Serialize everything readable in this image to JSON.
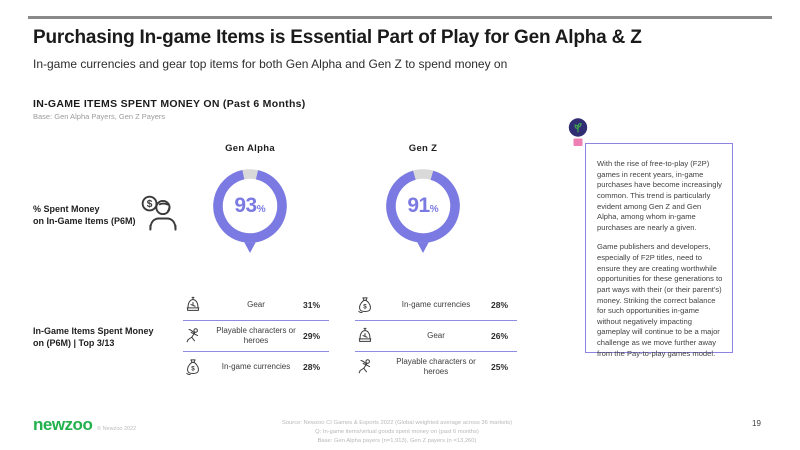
{
  "slide": {
    "title": "Purchasing In-game Items is Essential Part of Play for Gen Alpha & Z",
    "subtitle": "In-game currencies and gear top items for both Gen Alpha and Gen Z to spend money on",
    "page_number": "19"
  },
  "section": {
    "heading": "IN-GAME ITEMS SPENT MONEY ON (Past 6 Months)",
    "base_note": "Base: Gen Alpha Payers, Gen Z Payers"
  },
  "row_labels": {
    "spent_money_line1": "% Spent Money",
    "spent_money_line2": "on In-Game Items (P6M)",
    "top_items_line1": "In-Game Items Spent Money",
    "top_items_line2": "on (P6M) | Top 3/13"
  },
  "icons": {
    "payer": "payer-dollar-icon",
    "bulb": "lightbulb-icon"
  },
  "columns": [
    {
      "name": "Gen Alpha",
      "items": [
        {
          "icon": "armor-icon",
          "label": "Gear",
          "value": "31%"
        },
        {
          "icon": "hero-icon",
          "label": "Playable characters or heroes",
          "value": "29%"
        },
        {
          "icon": "moneybag-icon",
          "label": "In-game currencies",
          "value": "28%"
        }
      ]
    },
    {
      "name": "Gen Z",
      "items": [
        {
          "icon": "moneybag-icon",
          "label": "In-game currencies",
          "value": "28%"
        },
        {
          "icon": "armor-icon",
          "label": "Gear",
          "value": "26%"
        },
        {
          "icon": "hero-icon",
          "label": "Playable characters or heroes",
          "value": "25%"
        }
      ]
    }
  ],
  "chart_data": [
    {
      "type": "donut",
      "category": "Gen Alpha",
      "title": "% Spent Money on In-Game Items (P6M)",
      "value_pct": 93,
      "remainder_pct": 7,
      "center_num": "93",
      "unit": "%",
      "ring_color": "#7b7ae2",
      "remainder_color": "#d9d9d9"
    },
    {
      "type": "donut",
      "category": "Gen Z",
      "title": "% Spent Money on In-Game Items (P6M)",
      "value_pct": 91,
      "remainder_pct": 9,
      "center_num": "91",
      "unit": "%",
      "ring_color": "#7b7ae2",
      "remainder_color": "#d9d9d9"
    },
    {
      "type": "table",
      "title": "In-Game Items Spent Money on (P6M) | Top 3/13",
      "series": [
        {
          "name": "Gen Alpha",
          "categories": [
            "Gear",
            "Playable characters or heroes",
            "In-game currencies"
          ],
          "values": [
            31,
            29,
            28
          ]
        },
        {
          "name": "Gen Z",
          "categories": [
            "In-game currencies",
            "Gear",
            "Playable characters or heroes"
          ],
          "values": [
            28,
            26,
            25
          ]
        }
      ]
    }
  ],
  "note": {
    "paragraphs": [
      "With the rise of free-to-play (F2P) games in recent years, in-game purchases have become increasingly common. This trend is particularly evident among Gen Z and Gen Alpha, among whom in-game purchases are nearly a given.",
      "Game publishers and developers, especially of F2P titles, need to ensure they are creating worthwhile opportunities for these generations to part ways with their (or their parent's) money. Striking the correct balance for such opportunities in-game without negatively impacting gameplay will continue to be a major challenge as we move further away from the Pay-to-play games model."
    ]
  },
  "footer": {
    "logo": "newzoo",
    "copyright": "© Newzoo 2022",
    "source_lines": [
      "Source: Newzoo CI Games & Esports 2022 (Global weighted average across 36 markets)",
      "Q: In-game items/virtual goods spent money on (past 6 months)",
      "Base: Gen Alpha payers (n=1,913), Gen Z payers (n =13,260)"
    ]
  },
  "colors": {
    "accent_purple": "#7b7ae2",
    "divider_purple": "#8d8ce0",
    "note_border": "#8c84e0",
    "logo_green": "#22b14c",
    "bulb_navy": "#312d72",
    "bulb_pink": "#ee7fb4",
    "top_bar_gray": "#8a8a8a"
  }
}
